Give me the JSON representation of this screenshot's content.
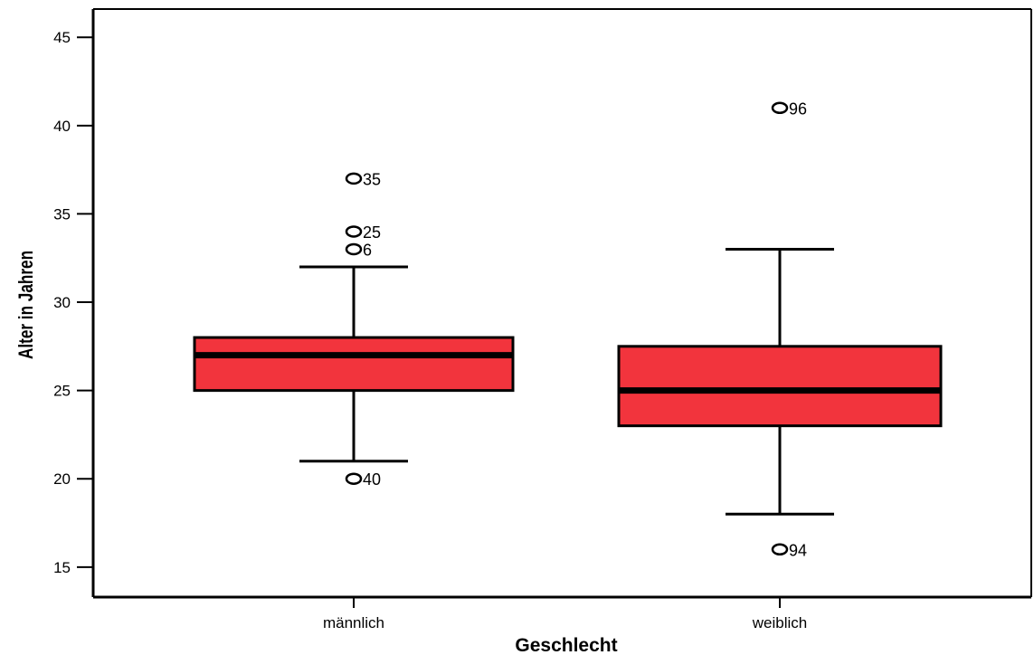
{
  "chart_data": {
    "type": "boxplot",
    "xlabel": "Geschlecht",
    "ylabel": "Alter in Jahren",
    "categories": [
      "männlich",
      "weiblich"
    ],
    "ylim": [
      13.3,
      46.6
    ],
    "yticks": [
      15,
      20,
      25,
      30,
      35,
      40,
      45
    ],
    "grid": false,
    "box_color": "#f2343d",
    "line_color": "#000000",
    "boxes": [
      {
        "category": "männlich",
        "whisker_low": 21,
        "q1": 25,
        "median": 27,
        "q3": 28,
        "whisker_high": 32,
        "outliers": [
          {
            "value": 37,
            "label": "35"
          },
          {
            "value": 34,
            "label": "25"
          },
          {
            "value": 33,
            "label": "6"
          },
          {
            "value": 20,
            "label": "40"
          }
        ]
      },
      {
        "category": "weiblich",
        "whisker_low": 18,
        "q1": 23,
        "median": 25,
        "q3": 27.5,
        "whisker_high": 33,
        "outliers": [
          {
            "value": 41,
            "label": "96"
          },
          {
            "value": 16,
            "label": "94"
          }
        ]
      }
    ]
  }
}
